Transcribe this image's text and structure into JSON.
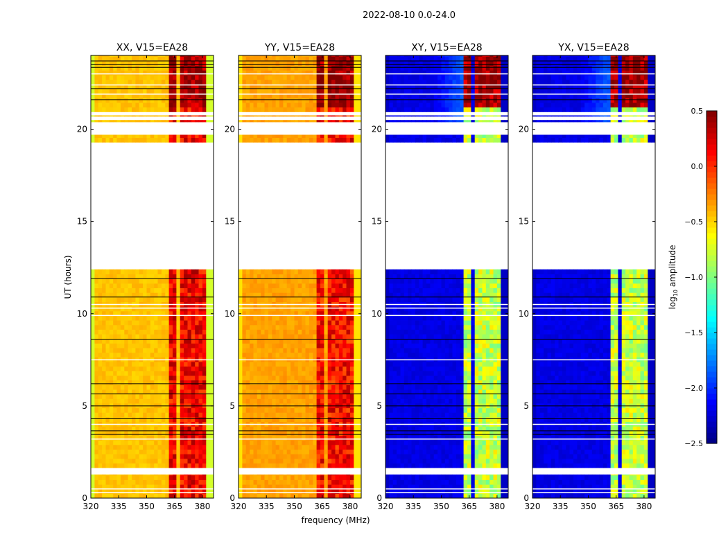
{
  "chart_data": {
    "type": "heatmap",
    "suptitle": "2022-08-10 0.0-24.0",
    "xlabel": "frequency (MHz)",
    "ylabel": "UT (hours)",
    "xlim": [
      320,
      386
    ],
    "ylim": [
      0,
      24
    ],
    "xticks": [
      320,
      335,
      350,
      365,
      380
    ],
    "yticks": [
      0,
      5,
      10,
      15,
      20
    ],
    "colorbar": {
      "label": "log10 amplitude",
      "label_main": "log",
      "label_sub": "10",
      "label_rest": " amplitude",
      "range": [
        -2.5,
        0.5
      ],
      "ticks": [
        "0.5",
        "0.0",
        "−0.5",
        "−1.0",
        "−1.5",
        "−2.0",
        "−2.5"
      ],
      "tick_values": [
        0.5,
        0.0,
        -0.5,
        -1.0,
        -1.5,
        -2.0,
        -2.5
      ],
      "colormap": "jet"
    },
    "panels": [
      {
        "title": "XX, V15=EA28",
        "baseline": -0.45,
        "edge_value": -0.75,
        "rfi_value": 0.05,
        "rfi_top_value": 0.3
      },
      {
        "title": "YY, V15=EA28",
        "baseline": -0.35,
        "edge_value": -0.55,
        "rfi_value": 0.0,
        "rfi_top_value": 0.35
      },
      {
        "title": "XY, V15=EA28",
        "baseline": -2.2,
        "edge_value": -2.3,
        "rfi_value": -0.9,
        "rfi_top_value": 0.3
      },
      {
        "title": "YX, V15=EA28",
        "baseline": -2.2,
        "edge_value": -2.3,
        "rfi_value": -0.9,
        "rfi_top_value": 0.3
      }
    ],
    "rfi_bands_mhz": [
      [
        362,
        366.5
      ],
      [
        367.6,
        371.4
      ],
      [
        372.9,
        377
      ],
      [
        378,
        382
      ]
    ],
    "data_segments_hours": [
      [
        0,
        1.28
      ],
      [
        1.65,
        12.4
      ],
      [
        19.3,
        19.7
      ],
      [
        20.4,
        20.5
      ],
      [
        20.7,
        20.75
      ],
      [
        20.95,
        24
      ]
    ],
    "flag_lines_black_hours": [
      23.7,
      23.5,
      23.35,
      11.9,
      10.9,
      8.6,
      6.2,
      5.65,
      5.0,
      4.3,
      3.65,
      3.45,
      21.6,
      22.2
    ],
    "flag_lines_white_hours": [
      0.3,
      0.5,
      3.2,
      4.0,
      7.5,
      9.9,
      10.3,
      10.5,
      21.9,
      22.4,
      23.0
    ]
  }
}
